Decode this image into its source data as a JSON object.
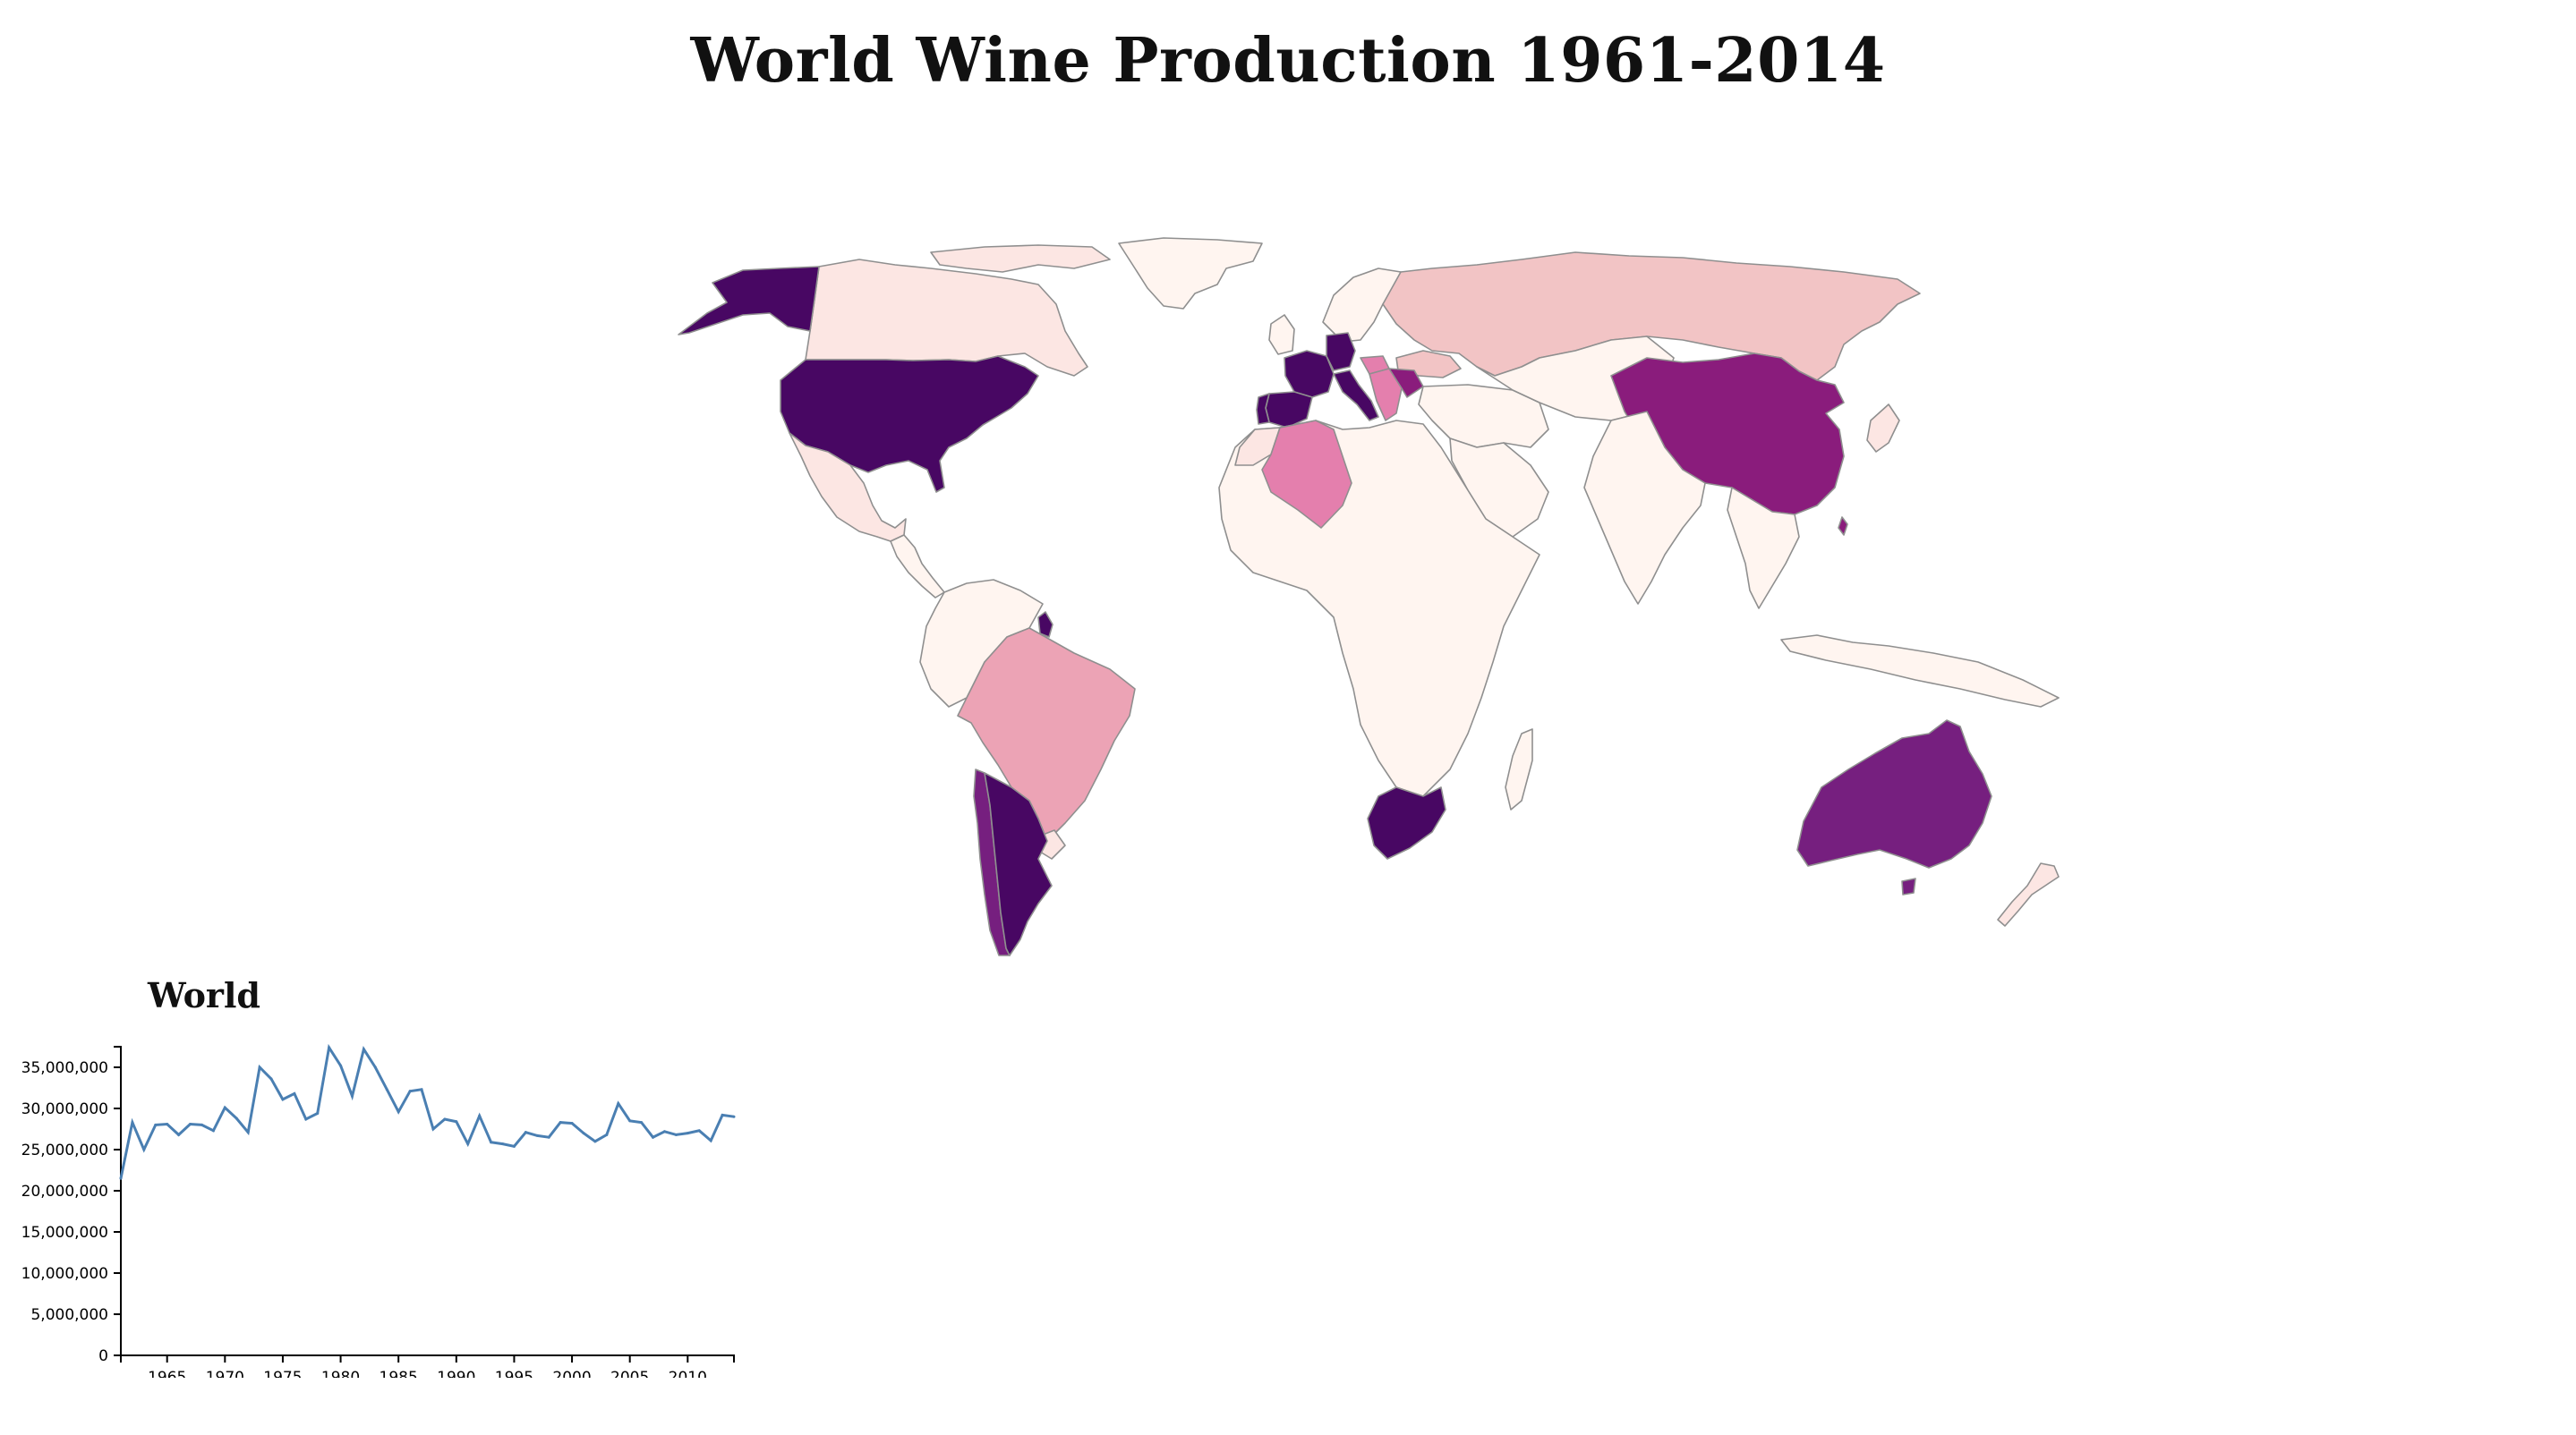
{
  "title": "World Wine Production 1961-2014",
  "colors": {
    "none": "#fff5f0",
    "very_low": "#fce6e3",
    "low": "#f2c4c5",
    "mid_low": "#eca3b5",
    "mid": "#e47fad",
    "high": "#8a1c7c",
    "very_high": "#761f7f",
    "max": "#480763",
    "line": "#4a7fb2"
  },
  "map": {
    "countries": [
      {
        "name": "Canada",
        "level": "very_low"
      },
      {
        "name": "Alaska",
        "level": "max"
      },
      {
        "name": "Greenland",
        "level": "none"
      },
      {
        "name": "United States",
        "level": "max"
      },
      {
        "name": "Mexico",
        "level": "very_low"
      },
      {
        "name": "Central America",
        "level": "none"
      },
      {
        "name": "Brazil",
        "level": "mid_low"
      },
      {
        "name": "Chile",
        "level": "very_high"
      },
      {
        "name": "Argentina",
        "level": "max"
      },
      {
        "name": "Uruguay",
        "level": "very_low"
      },
      {
        "name": "Northern South America",
        "level": "none"
      },
      {
        "name": "Russia",
        "level": "low"
      },
      {
        "name": "Central Asia",
        "level": "none"
      },
      {
        "name": "China",
        "level": "high"
      },
      {
        "name": "India",
        "level": "none"
      },
      {
        "name": "Southeast Asia",
        "level": "none"
      },
      {
        "name": "Indonesia",
        "level": "none"
      },
      {
        "name": "Japan",
        "level": "very_low"
      },
      {
        "name": "Australia",
        "level": "very_high"
      },
      {
        "name": "New Zealand",
        "level": "very_low"
      },
      {
        "name": "Algeria",
        "level": "mid"
      },
      {
        "name": "Morocco",
        "level": "very_low"
      },
      {
        "name": "South Africa",
        "level": "max"
      },
      {
        "name": "Africa",
        "level": "none"
      },
      {
        "name": "Madagascar",
        "level": "none"
      },
      {
        "name": "France",
        "level": "max"
      },
      {
        "name": "Spain",
        "level": "max"
      },
      {
        "name": "Portugal",
        "level": "max"
      },
      {
        "name": "Italy",
        "level": "max"
      },
      {
        "name": "Germany",
        "level": "max"
      },
      {
        "name": "Romania",
        "level": "high"
      },
      {
        "name": "Hungary",
        "level": "mid"
      },
      {
        "name": "Balkans",
        "level": "mid"
      },
      {
        "name": "Ukraine",
        "level": "low"
      },
      {
        "name": "Scandinavia",
        "level": "none"
      },
      {
        "name": "Middle East",
        "level": "none"
      },
      {
        "name": "Arabian Peninsula",
        "level": "none"
      },
      {
        "name": "French Guiana",
        "level": "max"
      }
    ]
  },
  "chart_data": {
    "type": "line",
    "title": "World",
    "xlabel": "",
    "ylabel": "",
    "x": [
      1961,
      1962,
      1963,
      1964,
      1965,
      1966,
      1967,
      1968,
      1969,
      1970,
      1971,
      1972,
      1973,
      1974,
      1975,
      1976,
      1977,
      1978,
      1979,
      1980,
      1981,
      1982,
      1983,
      1984,
      1985,
      1986,
      1987,
      1988,
      1989,
      1990,
      1991,
      1992,
      1993,
      1994,
      1995,
      1996,
      1997,
      1998,
      1999,
      2000,
      2001,
      2002,
      2003,
      2004,
      2005,
      2006,
      2007,
      2008,
      2009,
      2010,
      2011,
      2012,
      2013,
      2014
    ],
    "series": [
      {
        "values": [
          21500000,
          28300000,
          25000000,
          28000000,
          28100000,
          26800000,
          28100000,
          28000000,
          27300000,
          30100000,
          28800000,
          27100000,
          35000000,
          33600000,
          31100000,
          31800000,
          28700000,
          29400000,
          37400000,
          35200000,
          31500000,
          37200000,
          35000000,
          32300000,
          29600000,
          32100000,
          32300000,
          27500000,
          28700000,
          28400000,
          25700000,
          29100000,
          25900000,
          25700000,
          25400000,
          27100000,
          26700000,
          26500000,
          28300000,
          28200000,
          27000000,
          26000000,
          26800000,
          30600000,
          28500000,
          28300000,
          26500000,
          27200000,
          26800000,
          27000000,
          27300000,
          26100000,
          29200000,
          29000000
        ]
      }
    ],
    "xlim": [
      1961,
      2014
    ],
    "ylim": [
      0,
      37500000
    ],
    "x_ticks": [
      1965,
      1970,
      1975,
      1980,
      1985,
      1990,
      1995,
      2000,
      2005,
      2010
    ],
    "y_ticks": [
      0,
      5000000,
      10000000,
      15000000,
      20000000,
      25000000,
      30000000,
      35000000
    ],
    "grid": false
  }
}
